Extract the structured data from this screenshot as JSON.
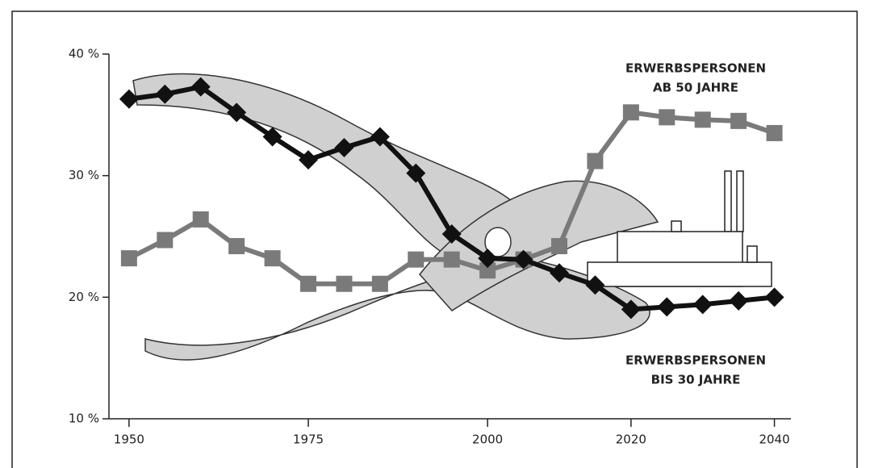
{
  "chart_data": {
    "type": "line",
    "x": [
      1950,
      1955,
      1960,
      1965,
      1970,
      1975,
      1980,
      1985,
      1990,
      1995,
      2000,
      2005,
      2010,
      2015,
      2020,
      2025,
      2030,
      2035,
      2040
    ],
    "series": [
      {
        "label": [
          "ERWERBSPERSONEN",
          "AB 50 JAHRE"
        ],
        "color": "#7a7a7a",
        "marker": "square",
        "values": [
          23.2,
          24.7,
          26.4,
          24.2,
          23.2,
          21.1,
          21.1,
          21.1,
          23.1,
          23.1,
          22.2,
          23.1,
          24.2,
          31.2,
          35.2,
          34.8,
          34.6,
          34.5,
          33.5
        ]
      },
      {
        "label": [
          "ERWERBSPERSONEN",
          "BIS 30 JAHRE"
        ],
        "color": "#111111",
        "marker": "diamond",
        "values": [
          36.3,
          36.7,
          37.3,
          35.2,
          33.2,
          31.3,
          32.3,
          33.2,
          30.2,
          25.2,
          23.2,
          23.1,
          22,
          21,
          19,
          19.2,
          19.4,
          19.7,
          20
        ]
      }
    ],
    "xlim": [
      1947.2,
      2042.3
    ],
    "xticks": [
      1950,
      1975,
      2000,
      2020,
      2040
    ],
    "ylim": [
      10,
      40
    ],
    "yticks": [
      {
        "value": 10,
        "label": "10 %"
      },
      {
        "value": 20,
        "label": "20 %"
      },
      {
        "value": 30,
        "label": "30 %"
      },
      {
        "value": 40,
        "label": "40 %"
      }
    ]
  }
}
